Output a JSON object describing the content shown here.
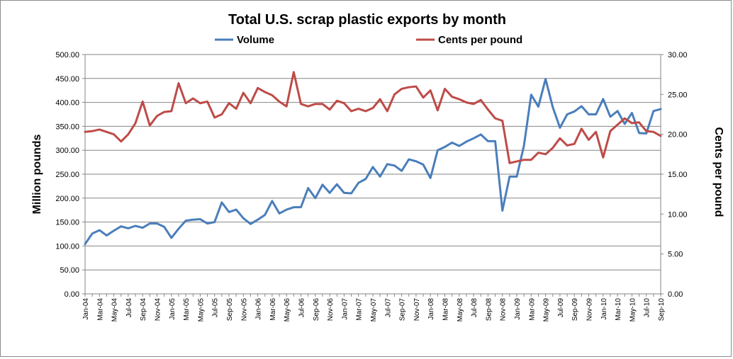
{
  "chart_data": {
    "type": "line",
    "title": "Total U.S. scrap plastic exports by month",
    "ylabel_left": "Million pounds",
    "ylabel_right": "Cents per pound",
    "ylim_left": [
      0,
      500
    ],
    "ylim_right": [
      0,
      30
    ],
    "y_left_ticks": [
      "0.00",
      "50.00",
      "100.00",
      "150.00",
      "200.00",
      "250.00",
      "300.00",
      "350.00",
      "400.00",
      "450.00",
      "500.00"
    ],
    "y_right_ticks": [
      "0.00",
      "5.00",
      "10.00",
      "15.00",
      "20.00",
      "25.00",
      "30.00"
    ],
    "x_tick_labels": [
      "Jan-04",
      "Mar-04",
      "May-04",
      "Jul-04",
      "Sep-04",
      "Nov-04",
      "Jan-05",
      "Mar-05",
      "May-05",
      "Jul-05",
      "Sep-05",
      "Nov-05",
      "Jan-06",
      "Mar-06",
      "May-06",
      "Jul-06",
      "Sep-06",
      "Nov-06",
      "Jan-07",
      "Mar-07",
      "May-07",
      "Jul-07",
      "Sep-07",
      "Nov-07",
      "Jan-08",
      "Mar-08",
      "May-08",
      "Jul-08",
      "Sep-08",
      "Nov-08",
      "Jan-09",
      "Mar-09",
      "May-09",
      "Jul-09",
      "Sep-09",
      "Nov-09",
      "Jan-10",
      "Mar-10",
      "May-10",
      "Jul-10",
      "Sep-10"
    ],
    "x": [
      "Jan-04",
      "Feb-04",
      "Mar-04",
      "Apr-04",
      "May-04",
      "Jun-04",
      "Jul-04",
      "Aug-04",
      "Sep-04",
      "Oct-04",
      "Nov-04",
      "Dec-04",
      "Jan-05",
      "Feb-05",
      "Mar-05",
      "Apr-05",
      "May-05",
      "Jun-05",
      "Jul-05",
      "Aug-05",
      "Sep-05",
      "Oct-05",
      "Nov-05",
      "Dec-05",
      "Jan-06",
      "Feb-06",
      "Mar-06",
      "Apr-06",
      "May-06",
      "Jun-06",
      "Jul-06",
      "Aug-06",
      "Sep-06",
      "Oct-06",
      "Nov-06",
      "Dec-06",
      "Jan-07",
      "Feb-07",
      "Mar-07",
      "Apr-07",
      "May-07",
      "Jun-07",
      "Jul-07",
      "Aug-07",
      "Sep-07",
      "Oct-07",
      "Nov-07",
      "Dec-07",
      "Jan-08",
      "Feb-08",
      "Mar-08",
      "Apr-08",
      "May-08",
      "Jun-08",
      "Jul-08",
      "Aug-08",
      "Sep-08",
      "Oct-08",
      "Nov-08",
      "Dec-08",
      "Jan-09",
      "Feb-09",
      "Mar-09",
      "Apr-09",
      "May-09",
      "Jun-09",
      "Jul-09",
      "Aug-09",
      "Sep-09",
      "Oct-09",
      "Nov-09",
      "Dec-09",
      "Jan-10",
      "Feb-10",
      "Mar-10",
      "Apr-10",
      "May-10",
      "Jun-10",
      "Jul-10",
      "Aug-10",
      "Sep-10"
    ],
    "grid": true,
    "legend_position": "top",
    "series": [
      {
        "name": "Volume",
        "axis": "left",
        "color": "#4a7ebb",
        "values": [
          104,
          126,
          133,
          122,
          132,
          141,
          137,
          142,
          138,
          147,
          147,
          140,
          117,
          136,
          153,
          155,
          156,
          147,
          150,
          191,
          171,
          176,
          158,
          146,
          155,
          165,
          194,
          168,
          176,
          181,
          181,
          221,
          200,
          228,
          211,
          229,
          211,
          210,
          232,
          240,
          265,
          245,
          271,
          268,
          257,
          281,
          277,
          270,
          242,
          300,
          307,
          316,
          309,
          318,
          325,
          333,
          319,
          319,
          174,
          245,
          245,
          310,
          416,
          391,
          449,
          390,
          347,
          375,
          381,
          392,
          375,
          375,
          407,
          370,
          382,
          355,
          378,
          336,
          335,
          382,
          386
        ]
      },
      {
        "name": "Cents per pound",
        "axis": "right",
        "color": "#be4b48",
        "values": [
          20.3,
          20.4,
          20.6,
          20.3,
          20.0,
          19.1,
          20.0,
          21.4,
          24.1,
          21.1,
          22.3,
          22.8,
          22.9,
          26.4,
          23.9,
          24.5,
          23.9,
          24.1,
          22.1,
          22.5,
          23.9,
          23.2,
          25.2,
          23.9,
          25.8,
          25.3,
          24.9,
          24.1,
          23.5,
          27.8,
          23.8,
          23.5,
          23.8,
          23.8,
          23.1,
          24.2,
          23.9,
          22.9,
          23.2,
          22.9,
          23.3,
          24.4,
          22.9,
          25.0,
          25.7,
          25.9,
          26.0,
          24.6,
          25.5,
          23.0,
          25.7,
          24.7,
          24.4,
          24.0,
          23.8,
          24.3,
          23.1,
          22.0,
          21.7,
          16.4,
          16.6,
          16.8,
          16.8,
          17.7,
          17.5,
          18.3,
          19.5,
          18.6,
          18.8,
          20.7,
          19.3,
          20.3,
          17.1,
          20.4,
          21.2,
          22.0,
          21.4,
          21.5,
          20.4,
          20.3,
          19.8
        ]
      }
    ]
  }
}
